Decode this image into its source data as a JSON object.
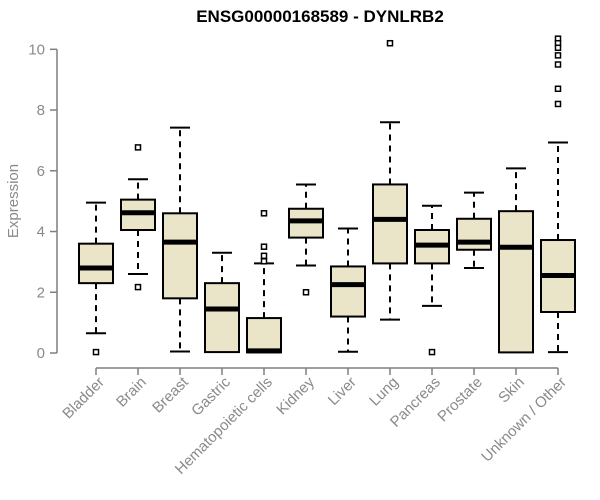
{
  "page": {
    "background": "#ffffff"
  },
  "chart_data": {
    "type": "boxplot",
    "title": "ENSG00000168589 - DYNLRB2",
    "ylabel": "Expression",
    "xlabel": "",
    "ylim": [
      0,
      10.4
    ],
    "yticks": [
      0,
      2,
      4,
      6,
      8,
      10
    ],
    "grid": false,
    "legend": false,
    "categories": [
      "Bladder",
      "Brain",
      "Breast",
      "Gastric",
      "Hematopoietic cells",
      "Kidney",
      "Liver",
      "Lung",
      "Pancreas",
      "Prostate",
      "Skin",
      "Unknown / Other"
    ],
    "series": [
      {
        "name": "Bladder",
        "whisker_low": 0.65,
        "q1": 2.3,
        "median": 2.8,
        "q3": 3.6,
        "whisker_high": 4.95,
        "outliers": [
          0.03
        ]
      },
      {
        "name": "Brain",
        "whisker_low": 2.6,
        "q1": 4.05,
        "median": 4.62,
        "q3": 5.05,
        "whisker_high": 5.72,
        "outliers": [
          6.77,
          2.17
        ]
      },
      {
        "name": "Breast",
        "whisker_low": 0.05,
        "q1": 1.8,
        "median": 3.65,
        "q3": 4.6,
        "whisker_high": 7.42,
        "outliers": []
      },
      {
        "name": "Gastric",
        "whisker_low": 0.03,
        "q1": 0.03,
        "median": 1.45,
        "q3": 2.3,
        "whisker_high": 3.3,
        "outliers": []
      },
      {
        "name": "Hematopoietic cells",
        "whisker_low": 0.02,
        "q1": 0.02,
        "median": 0.07,
        "q3": 1.15,
        "whisker_high": 2.95,
        "outliers": [
          4.6,
          3.5,
          3.2,
          3.02
        ]
      },
      {
        "name": "Kidney",
        "whisker_low": 2.88,
        "q1": 3.8,
        "median": 4.35,
        "q3": 4.75,
        "whisker_high": 5.55,
        "outliers": [
          2.0
        ]
      },
      {
        "name": "Liver",
        "whisker_low": 0.04,
        "q1": 1.2,
        "median": 2.25,
        "q3": 2.85,
        "whisker_high": 4.1,
        "outliers": []
      },
      {
        "name": "Lung",
        "whisker_low": 1.1,
        "q1": 2.95,
        "median": 4.4,
        "q3": 5.55,
        "whisker_high": 7.6,
        "outliers": [
          10.2
        ]
      },
      {
        "name": "Pancreas",
        "whisker_low": 1.55,
        "q1": 2.95,
        "median": 3.55,
        "q3": 4.05,
        "whisker_high": 4.85,
        "outliers": [
          0.03
        ]
      },
      {
        "name": "Prostate",
        "whisker_low": 2.8,
        "q1": 3.4,
        "median": 3.65,
        "q3": 4.42,
        "whisker_high": 5.28,
        "outliers": []
      },
      {
        "name": "Skin",
        "whisker_low": 0.02,
        "q1": 0.02,
        "median": 3.48,
        "q3": 4.67,
        "whisker_high": 6.08,
        "outliers": []
      },
      {
        "name": "Unknown / Other",
        "whisker_low": 0.03,
        "q1": 1.35,
        "median": 2.55,
        "q3": 3.72,
        "whisker_high": 6.93,
        "outliers": [
          10.35,
          10.2,
          10.05,
          9.8,
          9.5,
          8.7,
          8.2
        ]
      }
    ],
    "colors": {
      "box_fill": "#EAE4C9",
      "box_border": "#000000",
      "median": "#000000",
      "whisker": "#000000",
      "outlier_stroke": "#000000",
      "outlier_fill": "#ffffff",
      "axis": "#7f7f7f",
      "tick_text": "#8a8a8a",
      "title_text": "#000000",
      "background": "#ffffff"
    }
  }
}
